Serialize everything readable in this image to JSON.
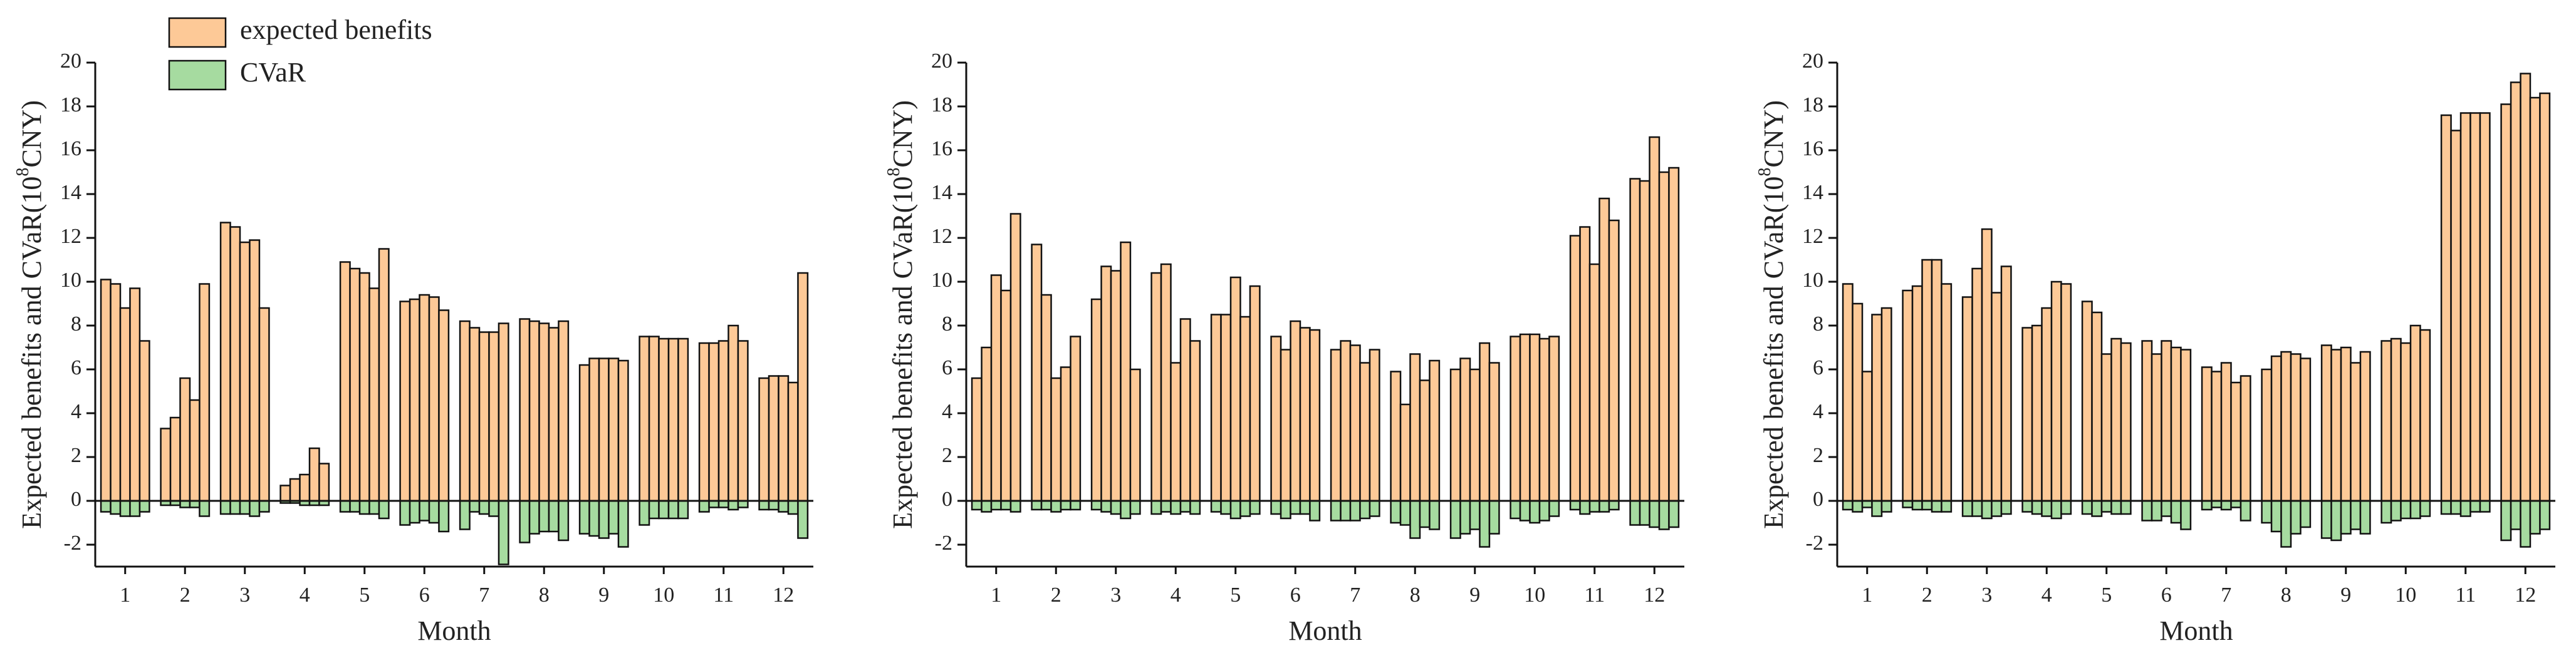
{
  "chart_data": [
    {
      "type": "bar",
      "categories": [
        null,
        null,
        "1",
        null,
        null,
        null,
        null,
        "2",
        null,
        null,
        null,
        null,
        "3",
        null,
        null,
        null,
        null,
        "4",
        null,
        null,
        null,
        null,
        "5",
        null,
        null,
        null,
        null,
        "6",
        null,
        null,
        null,
        null,
        "7",
        null,
        null,
        null,
        null,
        "8",
        null,
        null,
        null,
        null,
        "9",
        null,
        null,
        null,
        null,
        "10",
        null,
        null,
        null,
        null,
        "11",
        null,
        null,
        null,
        null,
        "12",
        null,
        null
      ],
      "series": [
        {
          "name": "expected benefits",
          "color": "#fdc997",
          "values": [
            10.1,
            9.9,
            8.8,
            9.7,
            7.3,
            3.3,
            3.8,
            5.6,
            4.6,
            9.9,
            12.7,
            12.5,
            11.8,
            11.9,
            8.8,
            0.7,
            1.0,
            1.2,
            2.4,
            1.7,
            10.9,
            10.6,
            10.4,
            9.7,
            11.5,
            9.1,
            9.2,
            9.4,
            9.3,
            8.7,
            8.2,
            7.9,
            7.7,
            7.7,
            8.1,
            8.3,
            8.2,
            8.1,
            7.9,
            8.2,
            6.2,
            6.5,
            6.5,
            6.5,
            6.4,
            7.5,
            7.5,
            7.4,
            7.4,
            7.4,
            7.2,
            7.2,
            7.3,
            8.0,
            7.3,
            5.6,
            5.7,
            5.7,
            5.4,
            10.4
          ]
        },
        {
          "name": "CVaR",
          "color": "#a6dba0",
          "values": [
            -0.5,
            -0.6,
            -0.7,
            -0.7,
            -0.5,
            -0.2,
            -0.2,
            -0.3,
            -0.3,
            -0.7,
            -0.6,
            -0.6,
            -0.6,
            -0.7,
            -0.5,
            -0.1,
            -0.1,
            -0.2,
            -0.2,
            -0.2,
            -0.5,
            -0.5,
            -0.6,
            -0.6,
            -0.8,
            -1.1,
            -1.0,
            -0.9,
            -1.0,
            -1.4,
            -1.3,
            -0.5,
            -0.6,
            -0.7,
            -2.9,
            -1.9,
            -1.5,
            -1.4,
            -1.4,
            -1.8,
            -1.5,
            -1.6,
            -1.7,
            -1.5,
            -2.1,
            -1.1,
            -0.8,
            -0.8,
            -0.8,
            -0.8,
            -0.5,
            -0.3,
            -0.3,
            -0.4,
            -0.3,
            -0.4,
            -0.4,
            -0.5,
            -0.6,
            -1.7
          ]
        }
      ],
      "ylim": [
        -3,
        20
      ],
      "yticks": [
        -2,
        0,
        2,
        4,
        6,
        8,
        10,
        12,
        14,
        16,
        18,
        20
      ],
      "xlabel": "Month",
      "ylabel": "Expected benefits and CVaR(10",
      "ylabel_exponent": "8",
      "ylabel_unit": "CNY)",
      "legend": "upper left"
    },
    {
      "type": "bar",
      "categories": [
        null,
        null,
        "1",
        null,
        null,
        null,
        null,
        "2",
        null,
        null,
        null,
        null,
        "3",
        null,
        null,
        null,
        null,
        "4",
        null,
        null,
        null,
        null,
        "5",
        null,
        null,
        null,
        null,
        "6",
        null,
        null,
        null,
        null,
        "7",
        null,
        null,
        null,
        null,
        "8",
        null,
        null,
        null,
        null,
        "9",
        null,
        null,
        null,
        null,
        "10",
        null,
        null,
        null,
        null,
        "11",
        null,
        null,
        null,
        null,
        "12",
        null,
        null
      ],
      "series": [
        {
          "color": "#fdc997",
          "values": [
            5.6,
            7.0,
            10.3,
            9.6,
            13.1,
            11.7,
            9.4,
            5.6,
            6.1,
            7.5,
            9.2,
            10.7,
            10.5,
            11.8,
            6.0,
            10.4,
            10.8,
            6.3,
            8.3,
            7.3,
            8.5,
            8.5,
            10.2,
            8.4,
            9.8,
            7.5,
            6.9,
            8.2,
            7.9,
            7.8,
            6.9,
            7.3,
            7.1,
            6.3,
            6.9,
            5.9,
            4.4,
            6.7,
            5.5,
            6.4,
            6.0,
            6.5,
            6.0,
            7.2,
            6.3,
            7.5,
            7.6,
            7.6,
            7.4,
            7.5,
            12.1,
            12.5,
            10.8,
            13.8,
            12.8,
            14.7,
            14.6,
            16.6,
            15.0,
            15.2
          ]
        },
        {
          "color": "#a6dba0",
          "values": [
            -0.4,
            -0.5,
            -0.4,
            -0.4,
            -0.5,
            -0.4,
            -0.4,
            -0.5,
            -0.4,
            -0.4,
            -0.4,
            -0.5,
            -0.6,
            -0.8,
            -0.6,
            -0.6,
            -0.5,
            -0.6,
            -0.5,
            -0.6,
            -0.5,
            -0.6,
            -0.8,
            -0.7,
            -0.6,
            -0.6,
            -0.8,
            -0.6,
            -0.6,
            -0.9,
            -0.9,
            -0.9,
            -0.9,
            -0.8,
            -0.7,
            -1.0,
            -1.1,
            -1.7,
            -1.2,
            -1.3,
            -1.7,
            -1.5,
            -1.3,
            -2.1,
            -1.5,
            -0.8,
            -0.9,
            -1.0,
            -0.9,
            -0.7,
            -0.4,
            -0.6,
            -0.5,
            -0.5,
            -0.4,
            -1.1,
            -1.1,
            -1.2,
            -1.3,
            -1.2
          ]
        }
      ],
      "ylim": [
        -3,
        20
      ],
      "yticks": [
        -2,
        0,
        2,
        4,
        6,
        8,
        10,
        12,
        14,
        16,
        18,
        20
      ],
      "xlabel": "Month",
      "ylabel": "Expected benefits and CVaR(10",
      "ylabel_exponent": "8",
      "ylabel_unit": "CNY)"
    },
    {
      "type": "bar",
      "categories": [
        null,
        null,
        "1",
        null,
        null,
        null,
        null,
        "2",
        null,
        null,
        null,
        null,
        "3",
        null,
        null,
        null,
        null,
        "4",
        null,
        null,
        null,
        null,
        "5",
        null,
        null,
        null,
        null,
        "6",
        null,
        null,
        null,
        null,
        "7",
        null,
        null,
        null,
        null,
        "8",
        null,
        null,
        null,
        null,
        "9",
        null,
        null,
        null,
        null,
        "10",
        null,
        null,
        null,
        null,
        "11",
        null,
        null,
        null,
        null,
        "12",
        null,
        null
      ],
      "series": [
        {
          "color": "#fdc997",
          "values": [
            9.9,
            9.0,
            5.9,
            8.5,
            8.8,
            9.6,
            9.8,
            11.0,
            11.0,
            9.9,
            9.3,
            10.6,
            12.4,
            9.5,
            10.7,
            7.9,
            8.0,
            8.8,
            10.0,
            9.9,
            9.1,
            8.6,
            6.7,
            7.4,
            7.2,
            7.3,
            6.7,
            7.3,
            7.0,
            6.9,
            6.1,
            5.9,
            6.3,
            5.4,
            5.7,
            6.0,
            6.6,
            6.8,
            6.7,
            6.5,
            7.1,
            6.9,
            7.0,
            6.3,
            6.8,
            7.3,
            7.4,
            7.2,
            8.0,
            7.8,
            17.6,
            16.9,
            17.7,
            17.7,
            17.7,
            18.1,
            19.1,
            19.5,
            18.4,
            18.6
          ]
        },
        {
          "color": "#a6dba0",
          "values": [
            -0.4,
            -0.5,
            -0.3,
            -0.7,
            -0.5,
            -0.3,
            -0.4,
            -0.4,
            -0.5,
            -0.5,
            -0.7,
            -0.7,
            -0.8,
            -0.7,
            -0.6,
            -0.5,
            -0.6,
            -0.7,
            -0.8,
            -0.6,
            -0.6,
            -0.7,
            -0.5,
            -0.6,
            -0.6,
            -0.9,
            -0.9,
            -0.7,
            -1.0,
            -1.3,
            -0.4,
            -0.3,
            -0.4,
            -0.3,
            -0.9,
            -1.0,
            -1.4,
            -2.1,
            -1.5,
            -1.2,
            -1.7,
            -1.8,
            -1.5,
            -1.3,
            -1.5,
            -1.0,
            -0.9,
            -0.8,
            -0.8,
            -0.7,
            -0.6,
            -0.6,
            -0.7,
            -0.5,
            -0.5,
            -1.8,
            -1.3,
            -2.1,
            -1.5,
            -1.3
          ]
        }
      ],
      "ylim": [
        -3,
        20
      ],
      "yticks": [
        -2,
        0,
        2,
        4,
        6,
        8,
        10,
        12,
        14,
        16,
        18,
        20
      ],
      "xlabel": "Month",
      "ylabel": "Expected benefits and CVaR(10",
      "ylabel_exponent": "8",
      "ylabel_unit": "CNY)"
    }
  ]
}
